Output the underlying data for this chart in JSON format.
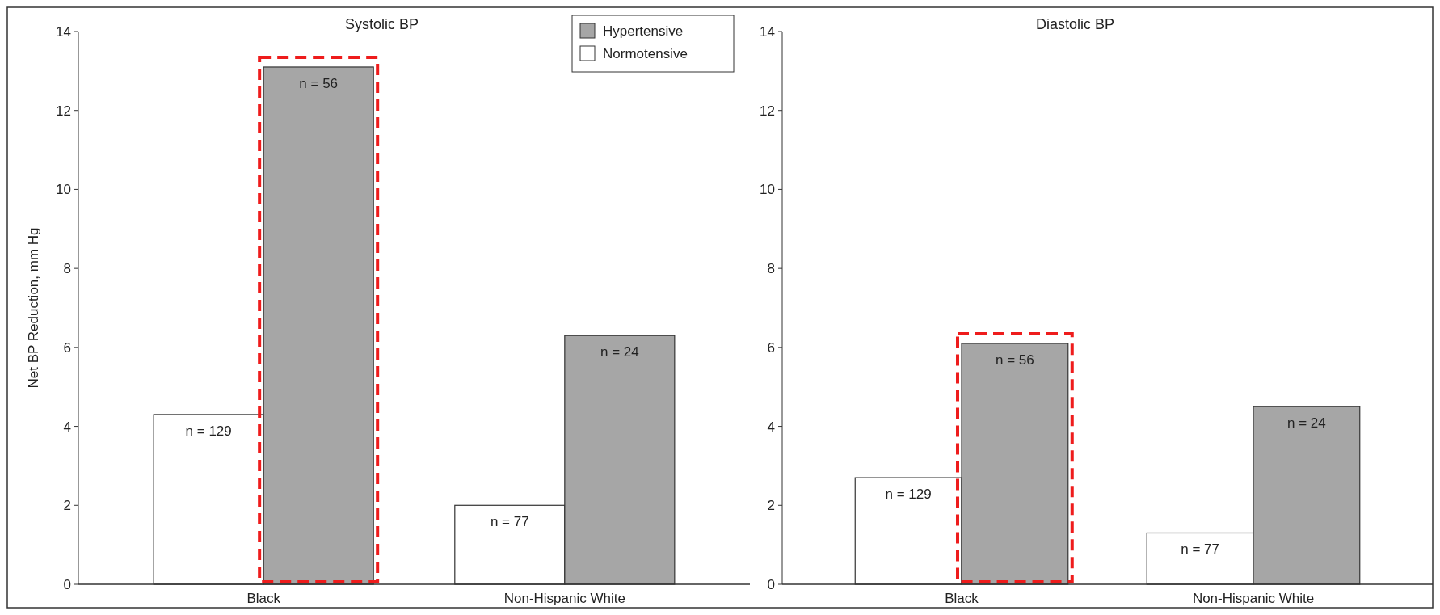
{
  "chart_data": [
    {
      "type": "bar",
      "title": "Systolic BP",
      "ylabel": "Net BP Reduction, mm Hg",
      "categories": [
        "Black",
        "Non-Hispanic White"
      ],
      "ylim": [
        0,
        14
      ],
      "yticks": [
        0,
        2,
        4,
        6,
        8,
        10,
        12,
        14
      ],
      "legend": "top right",
      "grid": false,
      "series": [
        {
          "name": "Normotensive",
          "color": "#ffffff",
          "values": [
            4.3,
            2.0
          ]
        },
        {
          "name": "Hypertensive",
          "color": "#a6a6a6",
          "values": [
            13.1,
            6.3
          ]
        }
      ],
      "annotations": [
        {
          "text": "n = 129",
          "x": "Black",
          "y": 4.3
        },
        {
          "text": "n = 56",
          "x": "Black",
          "y": 13.1
        },
        {
          "text": "n = 77",
          "x": "Non-Hispanic White",
          "y": 2.0
        },
        {
          "text": "n = 24",
          "x": "Non-Hispanic White",
          "y": 6.3
        }
      ]
    },
    {
      "type": "bar",
      "title": "Diastolic BP",
      "categories": [
        "Black",
        "Non-Hispanic White"
      ],
      "ylim": [
        0,
        14
      ],
      "yticks": [
        0,
        2,
        4,
        6,
        8,
        10,
        12,
        14
      ],
      "grid": false,
      "series": [
        {
          "color": "#ffffff",
          "values": [
            2.7,
            1.3
          ]
        },
        {
          "color": "#a6a6a6",
          "values": [
            6.1,
            4.5
          ]
        }
      ],
      "annotations": [
        {
          "text": "n = 129",
          "x": "Black",
          "y": 2.7
        },
        {
          "text": "n = 56",
          "x": "Black",
          "y": 6.1
        },
        {
          "text": "n = 77",
          "x": "Non-Hispanic White",
          "y": 1.3
        },
        {
          "text": "n = 24",
          "x": "Non-Hispanic White",
          "y": 4.5
        }
      ]
    }
  ]
}
